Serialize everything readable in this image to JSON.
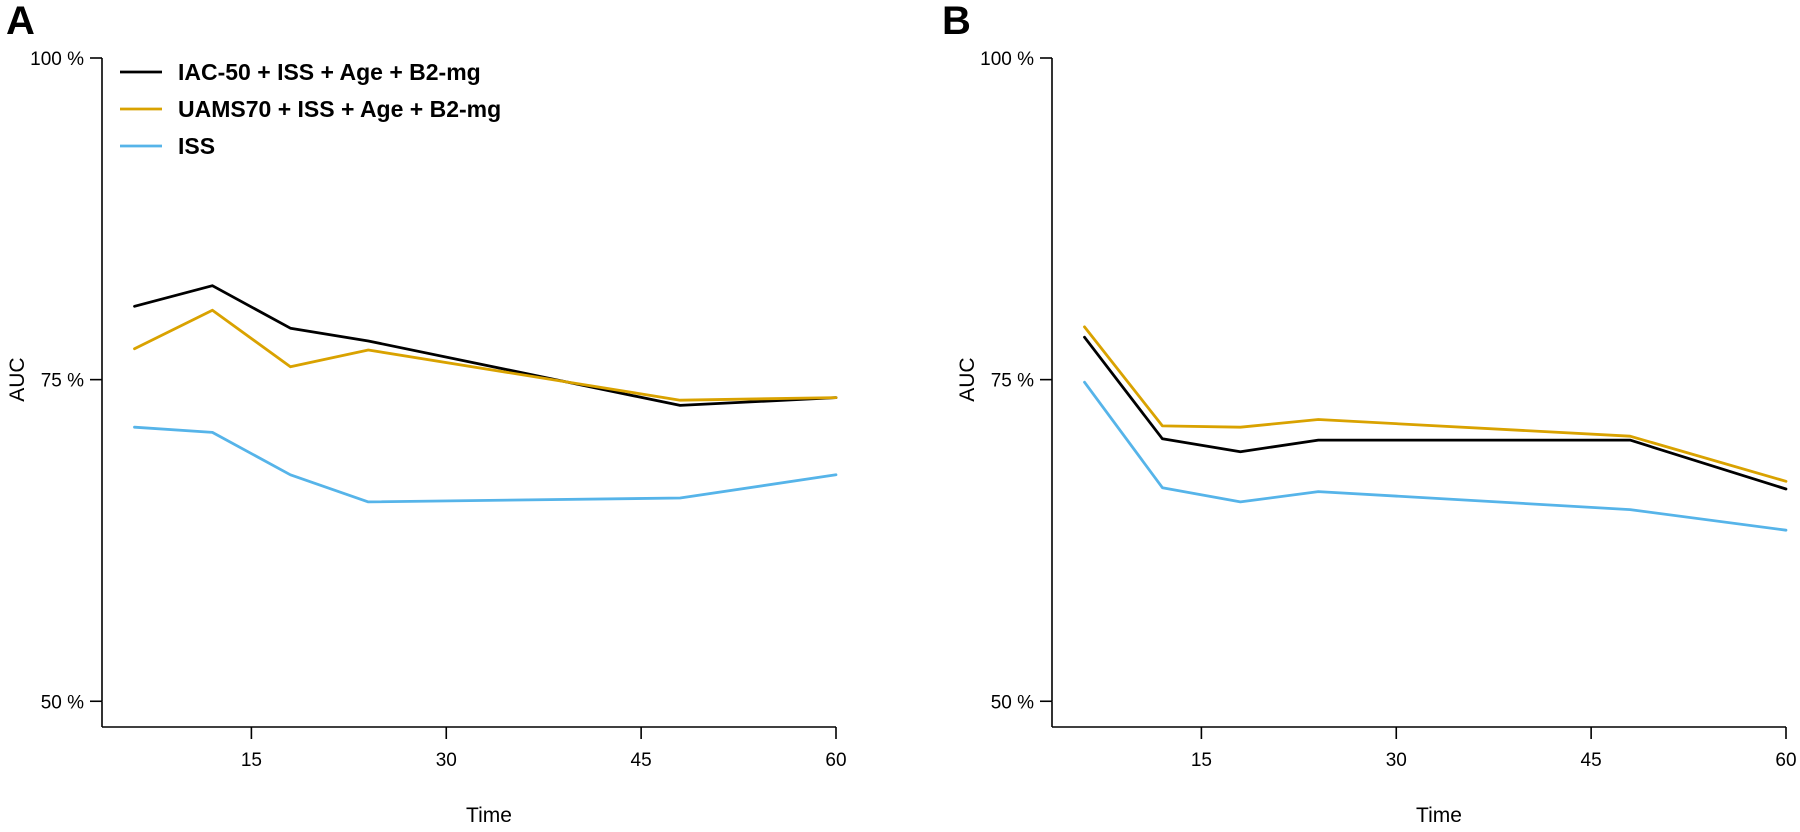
{
  "chart_data": [
    {
      "type": "line",
      "panel": "A",
      "xlabel": "Time",
      "ylabel": "AUC",
      "xlim": [
        3.5,
        60
      ],
      "ylim": [
        48,
        100
      ],
      "xticks": [
        15,
        30,
        45,
        60
      ],
      "xtick_labels": [
        "15",
        "30",
        "45",
        "60"
      ],
      "yticks": [
        50,
        75,
        100
      ],
      "ytick_labels": [
        "50 %",
        "75 %",
        "100 %"
      ],
      "grid": false,
      "legend": "top-left",
      "series": [
        {
          "name": "IAC-50 + ISS + Age + B2-mg",
          "color": "#000000",
          "x": [
            6,
            12,
            18,
            24,
            48,
            60
          ],
          "y": [
            80.7,
            82.3,
            79.0,
            78.0,
            73.0,
            73.6
          ]
        },
        {
          "name": "UAMS70 + ISS + Age + B2-mg",
          "color": "#D9A200",
          "x": [
            6,
            12,
            18,
            24,
            48,
            60
          ],
          "y": [
            77.4,
            80.4,
            76.0,
            77.3,
            73.4,
            73.6
          ]
        },
        {
          "name": "ISS",
          "color": "#56B4E9",
          "x": [
            6,
            12,
            18,
            24,
            48,
            60
          ],
          "y": [
            71.3,
            70.9,
            67.6,
            65.5,
            65.8,
            67.6
          ]
        }
      ]
    },
    {
      "type": "line",
      "panel": "B",
      "xlabel": "Time",
      "ylabel": "AUC",
      "xlim": [
        3.5,
        60
      ],
      "ylim": [
        48,
        100
      ],
      "xticks": [
        15,
        30,
        45,
        60
      ],
      "xtick_labels": [
        "15",
        "30",
        "45",
        "60"
      ],
      "yticks": [
        50,
        75,
        100
      ],
      "ytick_labels": [
        "50 %",
        "75 %",
        "100 %"
      ],
      "grid": false,
      "legend": "none",
      "series": [
        {
          "name": "IAC-50 + ISS + Age + B2-mg",
          "color": "#000000",
          "x": [
            6,
            12,
            18,
            24,
            48,
            60
          ],
          "y": [
            78.3,
            70.4,
            69.4,
            70.3,
            70.3,
            66.5
          ]
        },
        {
          "name": "UAMS70 + ISS + Age + B2-mg",
          "color": "#D9A200",
          "x": [
            6,
            12,
            18,
            24,
            48,
            60
          ],
          "y": [
            79.1,
            71.4,
            71.3,
            71.9,
            70.6,
            67.1
          ]
        },
        {
          "name": "ISS",
          "color": "#56B4E9",
          "x": [
            6,
            12,
            18,
            24,
            48,
            60
          ],
          "y": [
            74.8,
            66.6,
            65.5,
            66.3,
            64.9,
            63.3
          ]
        }
      ]
    }
  ]
}
